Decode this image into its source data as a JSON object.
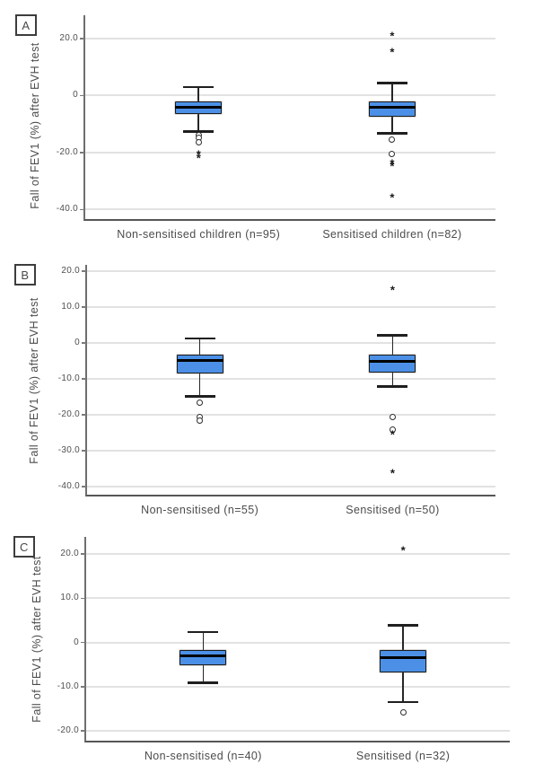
{
  "colors": {
    "box_fill": "#4b90e6",
    "box_border": "#1c1c1c",
    "median": "#000000",
    "whisker": "#262626",
    "gridline": "#e2e2e2",
    "axis": "#5e5e5e",
    "text": "#4c4c4c"
  },
  "chart_data": [
    {
      "type": "box",
      "panel_label": "A",
      "ylabel": "Fall of FEV1 (%) after EVH test",
      "xlabel": "",
      "ylim": [
        -44,
        28.2
      ],
      "grid": true,
      "yticks": [
        {
          "v": 20,
          "label": "20.0"
        },
        {
          "v": 0,
          "label": "0"
        },
        {
          "v": -20,
          "label": "-20.0"
        },
        {
          "v": -40,
          "label": "-40.0"
        }
      ],
      "categories": [
        "Non-sensitised children (n=95)",
        "Sensitised children (n=82)"
      ],
      "boxes": [
        {
          "whisker_high": 2.9,
          "q3": -2.2,
          "median": -4.2,
          "q1": -6.5,
          "whisker_low": -12.6,
          "outliers": [
            {
              "type": "circle",
              "v": -13.8
            },
            {
              "type": "circle",
              "v": -14.8
            },
            {
              "type": "circle",
              "v": -16.5
            },
            {
              "type": "asterisk",
              "v": -20.3
            },
            {
              "type": "asterisk",
              "v": -21.5
            }
          ]
        },
        {
          "whisker_high": 4.4,
          "q3": -2.1,
          "median": -4.0,
          "q1": -7.4,
          "whisker_low": -13.2,
          "outliers": [
            {
              "type": "asterisk",
              "v": 21.3
            },
            {
              "type": "asterisk",
              "v": 15.6
            },
            {
              "type": "circle",
              "v": -15.5
            },
            {
              "type": "circle",
              "v": -20.5
            },
            {
              "type": "asterisk",
              "v": -23.5
            },
            {
              "type": "asterisk",
              "v": -24.6
            },
            {
              "type": "asterisk",
              "v": -35.5
            }
          ]
        }
      ]
    },
    {
      "type": "box",
      "panel_label": "B",
      "ylabel": "Fall of FEV1 (%) after EVH test",
      "xlabel": "",
      "ylim": [
        -42.7,
        21.8
      ],
      "grid": true,
      "yticks": [
        {
          "v": 20,
          "label": "20.0"
        },
        {
          "v": 10,
          "label": "10.0"
        },
        {
          "v": 0,
          "label": "0"
        },
        {
          "v": -10,
          "label": "-10.0"
        },
        {
          "v": -20,
          "label": "-20.0"
        },
        {
          "v": -30,
          "label": "-30.0"
        },
        {
          "v": -40,
          "label": "-40.0"
        }
      ],
      "categories": [
        "Non-sensitised (n=55)",
        "Sensitised (n=50)"
      ],
      "boxes": [
        {
          "whisker_high": 1.3,
          "q3": -3.2,
          "median": -4.9,
          "q1": -8.4,
          "whisker_low": -14.8,
          "outliers": [
            {
              "type": "circle",
              "v": -16.6
            },
            {
              "type": "circle",
              "v": -20.6
            },
            {
              "type": "circle",
              "v": -21.6
            }
          ]
        },
        {
          "whisker_high": 2.2,
          "q3": -3.1,
          "median": -5.0,
          "q1": -8.2,
          "whisker_low": -12.1,
          "outliers": [
            {
              "type": "asterisk",
              "v": 15.0
            },
            {
              "type": "circle",
              "v": -20.6
            },
            {
              "type": "circle",
              "v": -24.0
            },
            {
              "type": "asterisk",
              "v": -25.2
            },
            {
              "type": "asterisk",
              "v": -36.0
            }
          ]
        }
      ]
    },
    {
      "type": "box",
      "panel_label": "C",
      "ylabel": "Fall of FEV1 (%) after EVH test",
      "xlabel": "",
      "ylim": [
        -22.6,
        23.9
      ],
      "grid": true,
      "yticks": [
        {
          "v": 20,
          "label": "20.0"
        },
        {
          "v": 10,
          "label": "10.0"
        },
        {
          "v": 0,
          "label": "0"
        },
        {
          "v": -10,
          "label": "-10.0"
        },
        {
          "v": -20,
          "label": "-20.0"
        }
      ],
      "categories": [
        "Non-sensitised (n=40)",
        "Sensitised (n=32)"
      ],
      "boxes": [
        {
          "whisker_high": 2.4,
          "q3": -1.6,
          "median": -3.0,
          "q1": -5.2,
          "whisker_low": -9.1,
          "outliers": []
        },
        {
          "whisker_high": 3.9,
          "q3": -1.7,
          "median": -3.4,
          "q1": -6.7,
          "whisker_low": -13.5,
          "outliers": [
            {
              "type": "asterisk",
              "v": 21.0
            },
            {
              "type": "circle",
              "v": -15.8
            }
          ]
        }
      ]
    }
  ]
}
